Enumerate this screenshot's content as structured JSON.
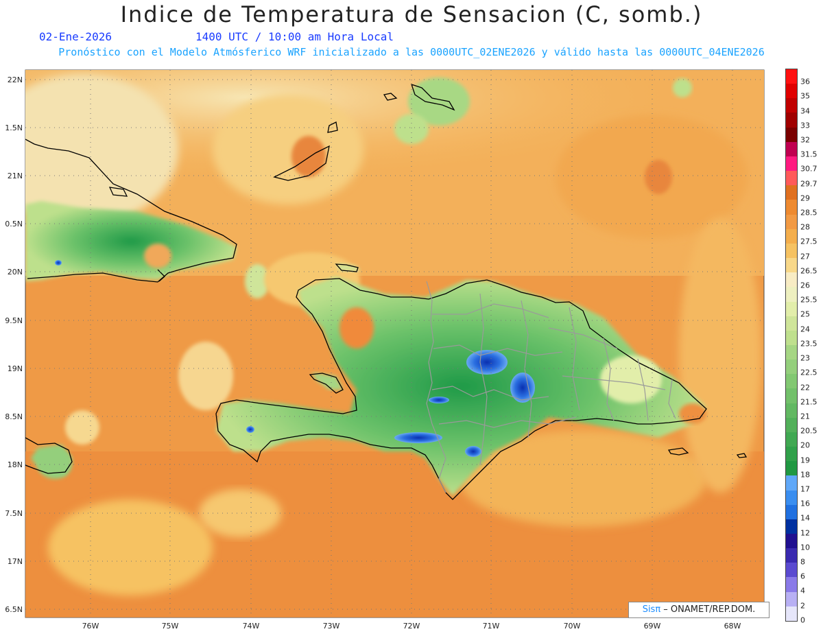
{
  "header": {
    "title": "Indice de Temperatura de Sensacion (C, somb.)",
    "date": "02-Ene-2026",
    "time": "1400 UTC / 10:00 am Hora Local",
    "subtitle": "Pronóstico con el Modelo Atmósferico WRF inicializado a las 0000UTC_02ENE2026 y válido hasta las  0000UTC_04ENE2026"
  },
  "map": {
    "lat_labels": [
      "22N",
      "1.5N",
      "21N",
      "0.5N",
      "20N",
      "9.5N",
      "19N",
      "8.5N",
      "18N",
      "7.5N",
      "17N",
      "6.5N"
    ],
    "lon_labels": [
      "76W",
      "75W",
      "74W",
      "73W",
      "72W",
      "71W",
      "70W",
      "69W",
      "68W"
    ],
    "colors": {
      "ocean_base": "#ef9a46",
      "land_green": "#6cc26a",
      "coast": "#000000",
      "borders": "#9a9a9a"
    }
  },
  "legend": {
    "labels": [
      "36",
      "35",
      "34",
      "33",
      "32",
      "31.5",
      "30.7",
      "29.7",
      "29",
      "28.5",
      "28",
      "27.5",
      "27",
      "26.5",
      "26",
      "25.5",
      "25",
      "24",
      "23.5",
      "23",
      "22.5",
      "22",
      "21.5",
      "21",
      "20.5",
      "20",
      "19",
      "18",
      "17",
      "16",
      "14",
      "12",
      "10",
      "8",
      "6",
      "4",
      "2",
      "0"
    ],
    "colors": [
      "#ff1010",
      "#e00000",
      "#c00000",
      "#a00000",
      "#7a0000",
      "#c00050",
      "#ff1a80",
      "#ff5a5a",
      "#e07020",
      "#ee8a30",
      "#f29a44",
      "#f4ae4c",
      "#f6c262",
      "#f8d88a",
      "#f8ecc4",
      "#eef0c0",
      "#e2eeaa",
      "#cfe59a",
      "#bfe08e",
      "#a6d684",
      "#94cf7c",
      "#82c872",
      "#72c06a",
      "#62b862",
      "#52b05a",
      "#40a852",
      "#30a04a",
      "#209842",
      "#60a8f8",
      "#3a8ef0",
      "#2070e0",
      "#0030a0",
      "#201090",
      "#3a2ab0",
      "#5a4ad0",
      "#8a7ae8",
      "#b8b0f4",
      "#e6e6fa"
    ]
  },
  "credit": {
    "sis": "Sisπ",
    "text": " – ONAMET/REP.DOM."
  }
}
